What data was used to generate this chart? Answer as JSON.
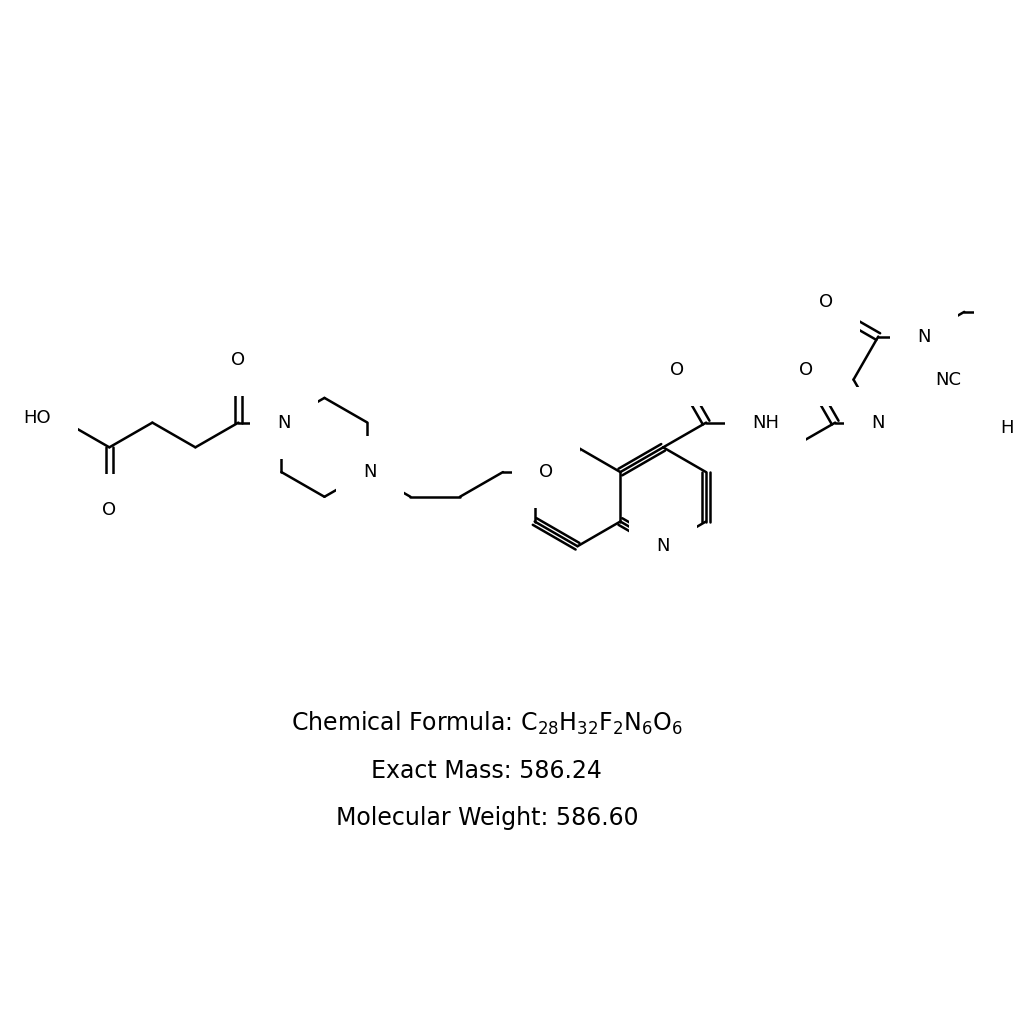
{
  "background_color": "#ffffff",
  "line_color": "#000000",
  "lw": 1.8,
  "fs": 13,
  "fs_info": 17,
  "info_lines": [
    "Chemical Formula: C$_{28}$H$_{32}$F$_{2}$N$_{6}$O$_{6}$",
    "Exact Mass: 586.24",
    "Molecular Weight: 586.60"
  ]
}
